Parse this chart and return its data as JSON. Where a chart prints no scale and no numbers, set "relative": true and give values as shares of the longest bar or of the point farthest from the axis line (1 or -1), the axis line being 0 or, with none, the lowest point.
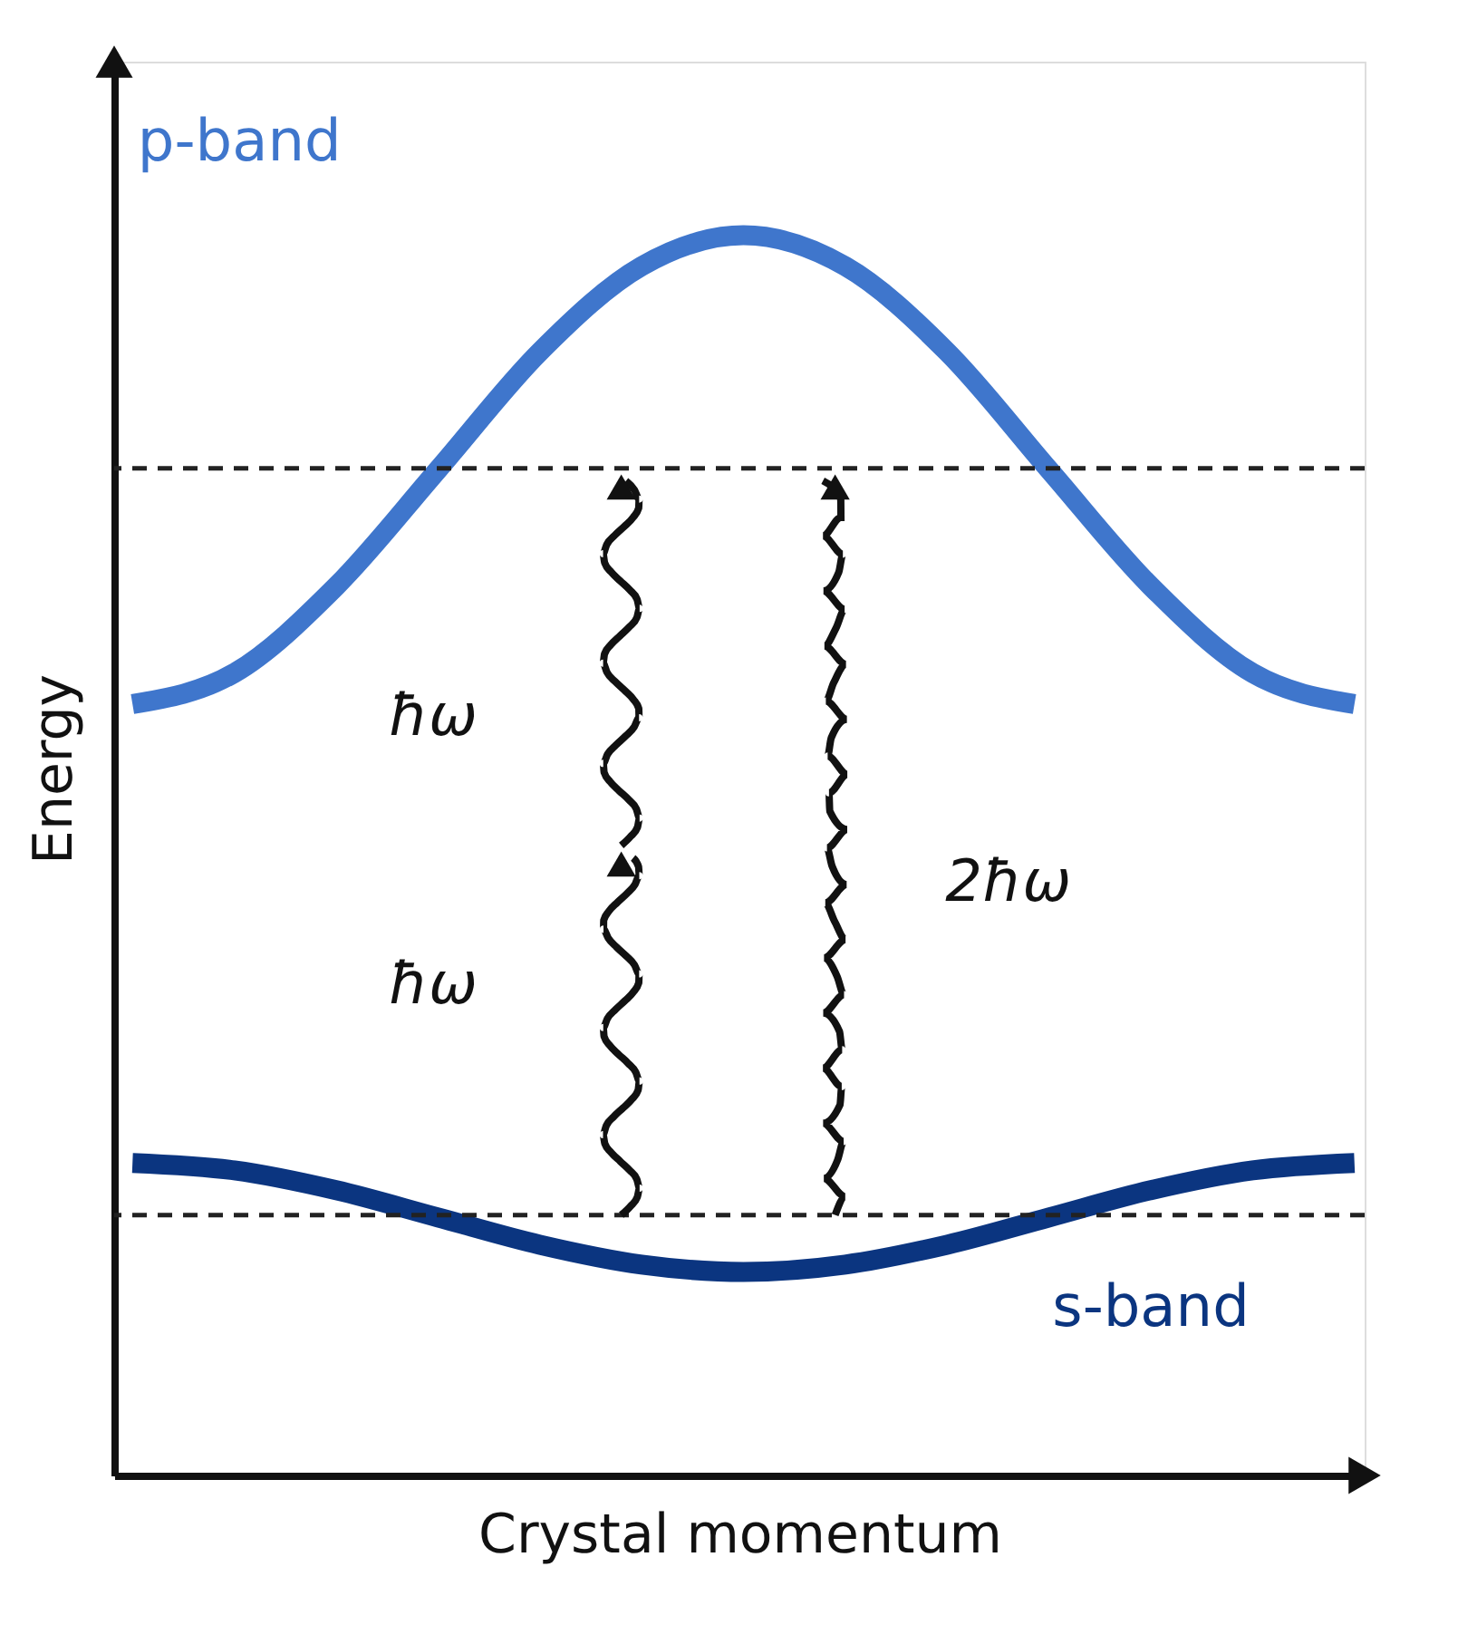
{
  "chart_data": {
    "type": "line",
    "relative": true,
    "xlabel": "Crystal momentum",
    "ylabel": "Energy",
    "categories": [
      null,
      null,
      null,
      null,
      null,
      null,
      null,
      null,
      null,
      null,
      null,
      null,
      null
    ],
    "series": [
      {
        "name": "p-band",
        "color": "#3f76cc",
        "values": [
          0.622,
          0.647,
          0.717,
          0.811,
          0.906,
          0.975,
          1.0,
          0.975,
          0.906,
          0.811,
          0.717,
          0.647,
          0.622
        ]
      },
      {
        "name": "s-band",
        "color": "#0b3580",
        "values": [
          0.252,
          0.246,
          0.23,
          0.208,
          0.186,
          0.17,
          0.164,
          0.17,
          0.186,
          0.208,
          0.23,
          0.246,
          0.252
        ]
      }
    ],
    "ref_lines": [
      {
        "axis": "y",
        "value": 0.812,
        "color": "#222222",
        "line_style": "dashed"
      },
      {
        "axis": "y",
        "value": 0.21,
        "color": "#222222",
        "line_style": "dashed"
      }
    ],
    "annotations": [
      "ħω",
      "ħω",
      "2ħω"
    ],
    "grid": false,
    "legend": false,
    "line_style": "solid",
    "marker": "none"
  }
}
